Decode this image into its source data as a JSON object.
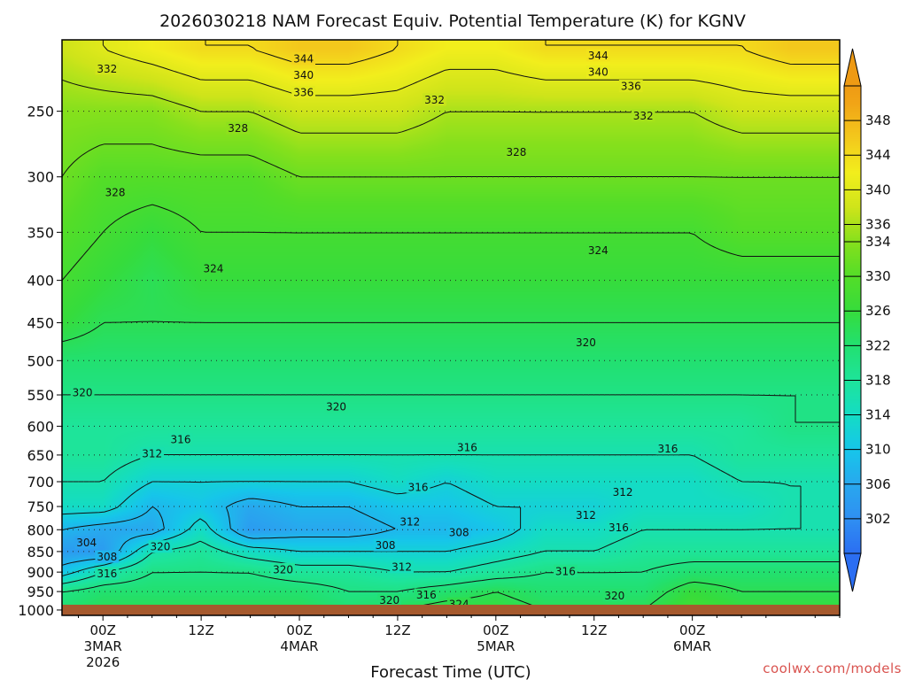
{
  "title": "2026030218 NAM Forecast Equiv. Potential Temperature (K) for KGNV",
  "credit": "coolwx.com/models",
  "chart_data": {
    "type": "heatmap",
    "title": "2026030218 NAM Forecast Equiv. Potential Temperature (K) for KGNV",
    "xlabel": "Forecast Time (UTC)",
    "ylabel": "",
    "x_start_hours": -5,
    "x_end_hours": 90,
    "xticks": [
      {
        "hours": 0,
        "label": "00Z",
        "sub": [
          "3MAR",
          "2026"
        ]
      },
      {
        "hours": 12,
        "label": "12Z",
        "sub": []
      },
      {
        "hours": 24,
        "label": "00Z",
        "sub": [
          "4MAR"
        ]
      },
      {
        "hours": 36,
        "label": "12Z",
        "sub": []
      },
      {
        "hours": 48,
        "label": "00Z",
        "sub": [
          "5MAR"
        ]
      },
      {
        "hours": 60,
        "label": "12Z",
        "sub": []
      },
      {
        "hours": 72,
        "label": "00Z",
        "sub": [
          "6MAR"
        ]
      }
    ],
    "yticks": [
      250,
      300,
      350,
      400,
      450,
      500,
      550,
      600,
      650,
      700,
      750,
      800,
      850,
      900,
      950,
      1000
    ],
    "ylim": [
      205,
      1015
    ],
    "y_scale": "log-pressure",
    "grid": true,
    "colorbar": {
      "levels": [
        302,
        306,
        310,
        314,
        318,
        322,
        326,
        330,
        334,
        336,
        340,
        344,
        348
      ],
      "range": [
        298,
        352
      ],
      "stops": [
        {
          "value": 298,
          "color": "#2b6ef2"
        },
        {
          "value": 302,
          "color": "#2f8ff2"
        },
        {
          "value": 306,
          "color": "#28a8ee"
        },
        {
          "value": 310,
          "color": "#16c6ea"
        },
        {
          "value": 314,
          "color": "#14dcc4"
        },
        {
          "value": 318,
          "color": "#1ee49a"
        },
        {
          "value": 322,
          "color": "#22e070"
        },
        {
          "value": 326,
          "color": "#36dc3c"
        },
        {
          "value": 330,
          "color": "#54dd28"
        },
        {
          "value": 334,
          "color": "#86e01c"
        },
        {
          "value": 338,
          "color": "#cfe41a"
        },
        {
          "value": 342,
          "color": "#f2ee1c"
        },
        {
          "value": 346,
          "color": "#f3c81c"
        },
        {
          "value": 350,
          "color": "#f1a416"
        },
        {
          "value": 352,
          "color": "#ee9a14"
        }
      ]
    },
    "ground_color": "#a65a2e",
    "pressure_levels": [
      1000,
      950,
      900,
      850,
      800,
      750,
      700,
      650,
      600,
      550,
      500,
      450,
      400,
      350,
      300,
      250,
      210
    ],
    "profiles": [
      {
        "hours": -5,
        "values": [
          322,
          320,
          310,
          304,
          308,
          314,
          316,
          318,
          318,
          320,
          322,
          326,
          328,
          330,
          332,
          334,
          338
        ]
      },
      {
        "hours": 0,
        "values": [
          324,
          322,
          316,
          304,
          306,
          314,
          316,
          318,
          318,
          320,
          322,
          324,
          326,
          328,
          330,
          334,
          340
        ]
      },
      {
        "hours": 6,
        "values": [
          324,
          322,
          320,
          316,
          306,
          308,
          312,
          316,
          318,
          320,
          322,
          324,
          324,
          326,
          330,
          334,
          342
        ]
      },
      {
        "hours": 12,
        "values": [
          324,
          322,
          320,
          318,
          314,
          310,
          312,
          316,
          318,
          320,
          322,
          324,
          326,
          328,
          330,
          336,
          344
        ]
      },
      {
        "hours": 18,
        "values": [
          324,
          322,
          320,
          314,
          304,
          306,
          312,
          316,
          318,
          320,
          322,
          324,
          326,
          328,
          330,
          336,
          344
        ]
      },
      {
        "hours": 24,
        "values": [
          324,
          322,
          318,
          312,
          306,
          308,
          312,
          316,
          318,
          320,
          322,
          324,
          326,
          328,
          332,
          338,
          346
        ]
      },
      {
        "hours": 30,
        "values": [
          322,
          320,
          318,
          312,
          306,
          308,
          312,
          316,
          318,
          320,
          322,
          324,
          326,
          328,
          332,
          338,
          346
        ]
      },
      {
        "hours": 36,
        "values": [
          324,
          320,
          316,
          312,
          308,
          310,
          314,
          316,
          318,
          320,
          322,
          324,
          326,
          328,
          332,
          338,
          344
        ]
      },
      {
        "hours": 42,
        "values": [
          326,
          322,
          316,
          312,
          308,
          310,
          312,
          316,
          318,
          320,
          322,
          324,
          326,
          328,
          332,
          336,
          342
        ]
      },
      {
        "hours": 48,
        "values": [
          326,
          324,
          318,
          314,
          310,
          312,
          314,
          316,
          318,
          320,
          322,
          324,
          326,
          328,
          332,
          336,
          342
        ]
      },
      {
        "hours": 54,
        "values": [
          324,
          322,
          320,
          316,
          314,
          312,
          314,
          316,
          318,
          320,
          322,
          324,
          326,
          328,
          332,
          336,
          344
        ]
      },
      {
        "hours": 60,
        "values": [
          324,
          322,
          320,
          316,
          314,
          312,
          314,
          316,
          318,
          320,
          322,
          324,
          326,
          328,
          332,
          336,
          344
        ]
      },
      {
        "hours": 66,
        "values": [
          324,
          322,
          320,
          318,
          316,
          314,
          314,
          316,
          318,
          320,
          322,
          324,
          326,
          328,
          332,
          336,
          344
        ]
      },
      {
        "hours": 72,
        "values": [
          328,
          326,
          322,
          318,
          316,
          314,
          314,
          316,
          318,
          320,
          322,
          324,
          326,
          328,
          332,
          336,
          344
        ]
      },
      {
        "hours": 78,
        "values": [
          326,
          324,
          322,
          318,
          316,
          314,
          316,
          318,
          318,
          320,
          322,
          324,
          326,
          330,
          332,
          338,
          344
        ]
      },
      {
        "hours": 84,
        "values": [
          326,
          324,
          322,
          318,
          316,
          316,
          316,
          318,
          320,
          320,
          322,
          324,
          326,
          330,
          332,
          338,
          346
        ]
      },
      {
        "hours": 90,
        "values": [
          326,
          324,
          322,
          318,
          316,
          316,
          316,
          318,
          320,
          320,
          322,
          324,
          326,
          330,
          332,
          338,
          346
        ]
      }
    ],
    "contour_levels": [
      304,
      308,
      312,
      316,
      320,
      324,
      328,
      332,
      336,
      340,
      344
    ],
    "contour_labels": [
      {
        "text": "344",
        "hours": 24.5,
        "p": 216
      },
      {
        "text": "340",
        "hours": 24.5,
        "p": 226
      },
      {
        "text": "336",
        "hours": 24.5,
        "p": 237
      },
      {
        "text": "344",
        "hours": 60.5,
        "p": 214
      },
      {
        "text": "340",
        "hours": 60.5,
        "p": 224
      },
      {
        "text": "336",
        "hours": 64.5,
        "p": 233
      },
      {
        "text": "332",
        "hours": 40.5,
        "p": 242
      },
      {
        "text": "332",
        "hours": 66,
        "p": 253
      },
      {
        "text": "332",
        "hours": 0.5,
        "p": 222
      },
      {
        "text": "328",
        "hours": 16.5,
        "p": 262
      },
      {
        "text": "328",
        "hours": 50.5,
        "p": 280
      },
      {
        "text": "328",
        "hours": 1.5,
        "p": 313
      },
      {
        "text": "324",
        "hours": 13.5,
        "p": 387
      },
      {
        "text": "324",
        "hours": 60.5,
        "p": 368
      },
      {
        "text": "320",
        "hours": 59,
        "p": 475
      },
      {
        "text": "320",
        "hours": -2.5,
        "p": 546
      },
      {
        "text": "320",
        "hours": 28.5,
        "p": 568
      },
      {
        "text": "316",
        "hours": 9.5,
        "p": 622
      },
      {
        "text": "316",
        "hours": 44.5,
        "p": 636
      },
      {
        "text": "316",
        "hours": 69,
        "p": 638
      },
      {
        "text": "316",
        "hours": 38.5,
        "p": 710
      },
      {
        "text": "316",
        "hours": 63,
        "p": 795
      },
      {
        "text": "316",
        "hours": 56.5,
        "p": 897
      },
      {
        "text": "316",
        "hours": 39.5,
        "p": 958
      },
      {
        "text": "316",
        "hours": 0.5,
        "p": 903
      },
      {
        "text": "312",
        "hours": 6,
        "p": 647
      },
      {
        "text": "312",
        "hours": 63.5,
        "p": 720
      },
      {
        "text": "312",
        "hours": 59,
        "p": 768
      },
      {
        "text": "312",
        "hours": 37.5,
        "p": 782
      },
      {
        "text": "312",
        "hours": 36.5,
        "p": 887
      },
      {
        "text": "308",
        "hours": 43.5,
        "p": 805
      },
      {
        "text": "308",
        "hours": 34.5,
        "p": 835
      },
      {
        "text": "308",
        "hours": 0.5,
        "p": 862
      },
      {
        "text": "304",
        "hours": -2,
        "p": 829
      },
      {
        "text": "320",
        "hours": 7,
        "p": 838
      },
      {
        "text": "320",
        "hours": 22,
        "p": 893
      },
      {
        "text": "320",
        "hours": 35,
        "p": 972
      },
      {
        "text": "320",
        "hours": 62.5,
        "p": 960
      },
      {
        "text": "324",
        "hours": 43.5,
        "p": 983
      }
    ]
  }
}
